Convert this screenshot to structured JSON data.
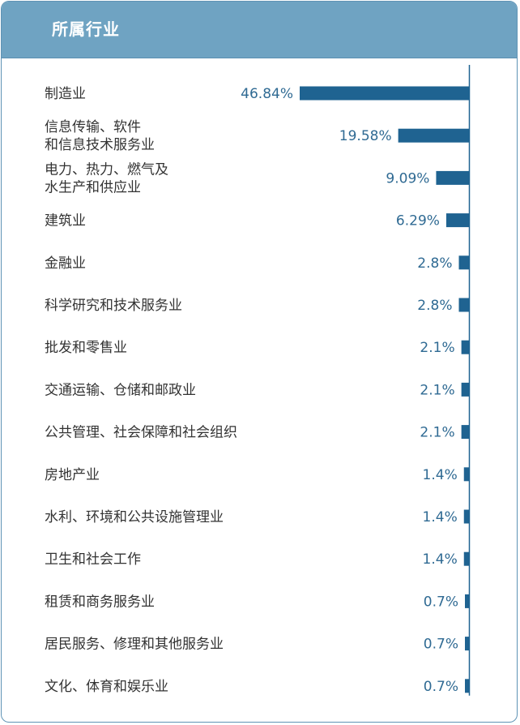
{
  "header": {
    "title": "所属行业"
  },
  "colors": {
    "header_bg": "#6fa3c2",
    "bar": "#1f6391",
    "value_text": "#2f6a93",
    "label_text": "#333333",
    "axis": "#1f6391"
  },
  "chart_data": {
    "type": "bar",
    "orientation": "horizontal",
    "title": "所属行业",
    "categories": [
      [
        "制造业"
      ],
      [
        "信息传输、软件",
        "和信息技术服务业"
      ],
      [
        "电力、热力、燃气及",
        "水生产和供应业"
      ],
      [
        "建筑业"
      ],
      [
        "金融业"
      ],
      [
        "科学研究和技术服务业"
      ],
      [
        "批发和零售业"
      ],
      [
        "交通运输、仓储和邮政业"
      ],
      [
        "公共管理、社会保障和社会组织"
      ],
      [
        "房地产业"
      ],
      [
        "水利、环境和公共设施管理业"
      ],
      [
        "卫生和社会工作"
      ],
      [
        "租赁和商务服务业"
      ],
      [
        "居民服务、修理和其他服务业"
      ],
      [
        "文化、体育和娱乐业"
      ]
    ],
    "values": [
      46.84,
      19.58,
      9.09,
      6.29,
      2.8,
      2.8,
      2.1,
      2.1,
      2.1,
      1.4,
      1.4,
      1.4,
      0.7,
      0.7,
      0.7
    ],
    "value_labels": [
      "46.84%",
      "19.58%",
      "9.09%",
      "6.29%",
      "2.8%",
      "2.8%",
      "2.1%",
      "2.1%",
      "2.1%",
      "1.4%",
      "1.4%",
      "1.4%",
      "0.7%",
      "0.7%",
      "0.7%"
    ],
    "unit": "%",
    "bars_extend_left_from_axis": true,
    "xlim": [
      0,
      46.84
    ]
  }
}
